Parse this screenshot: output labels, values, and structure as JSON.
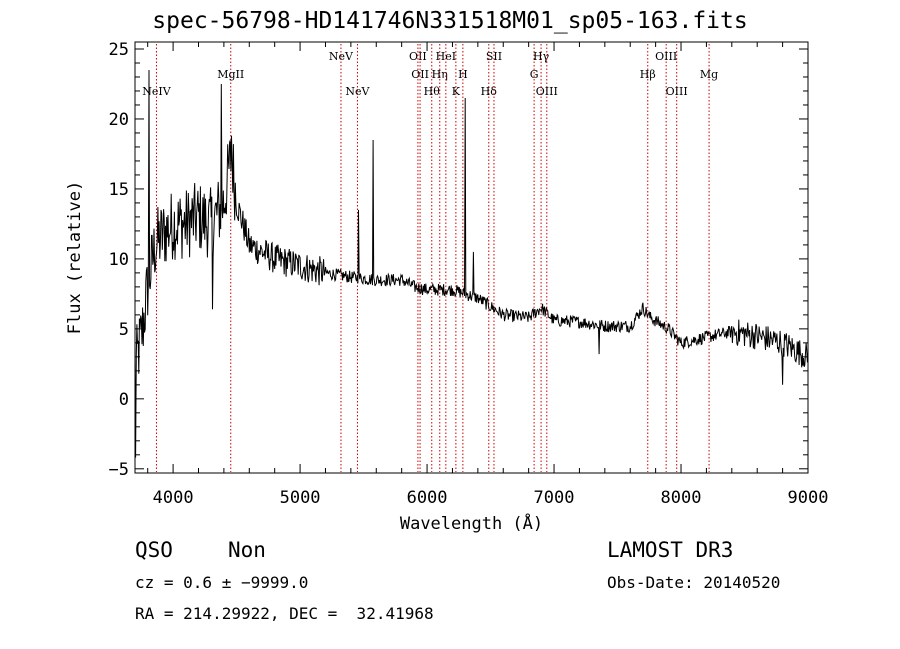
{
  "chart_data": {
    "type": "line",
    "title": "spec-56798-HD141746N331518M01_sp05-163.fits",
    "xlabel": "Wavelength (Å)",
    "ylabel": "Flux (relative)",
    "xlim": [
      3700,
      9000
    ],
    "ylim": [
      -5.3,
      25.5
    ],
    "xticks": [
      4000,
      5000,
      6000,
      7000,
      8000,
      9000
    ],
    "yticks": [
      -5,
      0,
      5,
      10,
      15,
      20,
      25
    ],
    "x_tick_labels": [
      "4000",
      "5000",
      "6000",
      "7000",
      "8000",
      "9000"
    ],
    "y_tick_labels": [
      "−5",
      "0",
      "5",
      "10",
      "15",
      "20",
      "25"
    ],
    "line_color": "#000000",
    "marker_color": "#cc0000",
    "continuum": [
      [
        3700,
        2
      ],
      [
        3760,
        5
      ],
      [
        3800,
        8
      ],
      [
        3860,
        11
      ],
      [
        3900,
        11.5
      ],
      [
        4000,
        12.5
      ],
      [
        4100,
        12.5
      ],
      [
        4200,
        13
      ],
      [
        4300,
        12.5
      ],
      [
        4400,
        14
      ],
      [
        4460,
        17.5
      ],
      [
        4500,
        14
      ],
      [
        4600,
        11
      ],
      [
        4800,
        10
      ],
      [
        5000,
        9.5
      ],
      [
        5200,
        9
      ],
      [
        5400,
        8.7
      ],
      [
        5600,
        8.5
      ],
      [
        5800,
        8.5
      ],
      [
        5900,
        8
      ],
      [
        6000,
        7.8
      ],
      [
        6200,
        7.8
      ],
      [
        6400,
        7.2
      ],
      [
        6600,
        6
      ],
      [
        6800,
        5.8
      ],
      [
        6900,
        6.5
      ],
      [
        7000,
        5.6
      ],
      [
        7200,
        5.5
      ],
      [
        7400,
        5.2
      ],
      [
        7600,
        5.2
      ],
      [
        7700,
        6.5
      ],
      [
        7760,
        5.8
      ],
      [
        7900,
        5
      ],
      [
        8000,
        4
      ],
      [
        8200,
        4.4
      ],
      [
        8400,
        4.8
      ],
      [
        8600,
        4.5
      ],
      [
        8800,
        4
      ],
      [
        9000,
        3
      ]
    ],
    "emission_spikes": [
      {
        "x": 3810,
        "y": 23.5
      },
      {
        "x": 4380,
        "y": 22.5
      },
      {
        "x": 4460,
        "y": 18.8
      },
      {
        "x": 5460,
        "y": 13.5
      },
      {
        "x": 5575,
        "y": 18.5
      },
      {
        "x": 6300,
        "y": 21.5
      },
      {
        "x": 6365,
        "y": 10.5
      }
    ],
    "absorption_dips": [
      {
        "x": 3705,
        "y": -4.2
      },
      {
        "x": 4310,
        "y": 6.4
      },
      {
        "x": 7355,
        "y": 3.2
      },
      {
        "x": 8800,
        "y": 1.0
      }
    ],
    "line_markers": [
      {
        "label": "NeIV",
        "x": 3869,
        "row": 3
      },
      {
        "label": "MgII",
        "x": 4454,
        "row": 2
      },
      {
        "label": "NeV",
        "x": 5322,
        "row": 1
      },
      {
        "label": "NeV",
        "x": 5452,
        "row": 3
      },
      {
        "label": "OII",
        "x": 5928,
        "row": 1
      },
      {
        "label": "OII",
        "x": 5945,
        "row": 2
      },
      {
        "label": "Hθ",
        "x": 6037,
        "row": 3
      },
      {
        "label": "Hη",
        "x": 6100,
        "row": 2
      },
      {
        "label": "HeI",
        "x": 6148,
        "row": 1
      },
      {
        "label": "K",
        "x": 6227,
        "row": 3
      },
      {
        "label": "H",
        "x": 6282,
        "row": 2
      },
      {
        "label": "Hδ",
        "x": 6486,
        "row": 3
      },
      {
        "label": "SII",
        "x": 6527,
        "row": 1
      },
      {
        "label": "G",
        "x": 6843,
        "row": 2
      },
      {
        "label": "Hγ",
        "x": 6898,
        "row": 1
      },
      {
        "label": "OIII",
        "x": 6943,
        "row": 3
      },
      {
        "label": "Hβ",
        "x": 7738,
        "row": 2
      },
      {
        "label": "OIII",
        "x": 7883,
        "row": 1
      },
      {
        "label": "OIII",
        "x": 7966,
        "row": 3
      },
      {
        "label": "Mg",
        "x": 8221,
        "row": 2
      }
    ]
  },
  "info": {
    "class": "QSO",
    "subclass": "Non",
    "survey": "LAMOST DR3",
    "redshift": "cz = 0.6 ± −9999.0",
    "obs_date": "Obs-Date: 20140520",
    "coords": "RA = 214.29922, DEC =  32.41968"
  }
}
